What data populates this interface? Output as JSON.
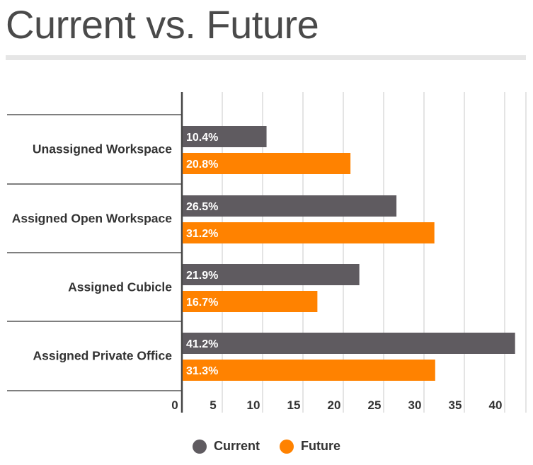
{
  "chart_data": {
    "type": "bar",
    "orientation": "horizontal",
    "title": "Current vs. Future",
    "categories": [
      "Unassigned Workspace",
      "Assigned Open Workspace",
      "Assigned Cubicle",
      "Assigned Private Office"
    ],
    "series": [
      {
        "name": "Current",
        "values": [
          10.4,
          26.5,
          21.9,
          41.2
        ],
        "labels": [
          "10.4%",
          "26.5%",
          "21.9%",
          "41.2%"
        ],
        "color": "#5f5b60"
      },
      {
        "name": "Future",
        "values": [
          20.8,
          31.2,
          16.7,
          31.3
        ],
        "labels": [
          "20.8%",
          "31.2%",
          "16.7%",
          "31.3%"
        ],
        "color": "#ff8200"
      }
    ],
    "xticks": [
      "0",
      "5",
      "10",
      "15",
      "20",
      "25",
      "30",
      "35",
      "40"
    ],
    "xlim": [
      0,
      40
    ],
    "grid": true,
    "legend_position": "bottom"
  }
}
